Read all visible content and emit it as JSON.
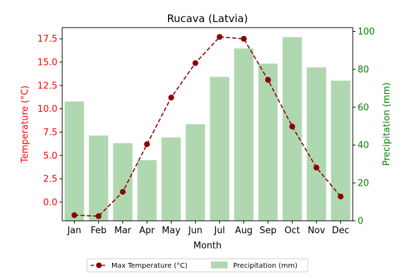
{
  "chart_data": {
    "type": "bar+line",
    "title": "Rucava (Latvia)",
    "xlabel": "Month",
    "categories": [
      "Jan",
      "Feb",
      "Mar",
      "Apr",
      "May",
      "Jun",
      "Jul",
      "Aug",
      "Sep",
      "Oct",
      "Nov",
      "Dec"
    ],
    "left_axis": {
      "label": "Temperature (°C)",
      "range": [
        -2.0,
        18.7
      ],
      "ticks": [
        "0.0",
        "2.5",
        "5.0",
        "7.5",
        "10.0",
        "12.5",
        "15.0",
        "17.5"
      ],
      "tick_values": [
        0,
        2.5,
        5,
        7.5,
        10,
        12.5,
        15,
        17.5
      ],
      "color": "#ff0000"
    },
    "right_axis": {
      "label": "Precipitation (mm)",
      "range": [
        0,
        102
      ],
      "ticks": [
        "0",
        "20",
        "40",
        "60",
        "80",
        "100"
      ],
      "tick_values": [
        0,
        20,
        40,
        60,
        80,
        100
      ],
      "color": "#008000"
    },
    "series": [
      {
        "name": "Max Temperature (°C)",
        "kind": "line",
        "axis": "left",
        "color": "#8b0000",
        "values": [
          -1.4,
          -1.5,
          1.1,
          6.2,
          11.2,
          14.9,
          17.7,
          17.5,
          13.1,
          8.1,
          3.7,
          0.6
        ]
      },
      {
        "name": "Precipitation (mm)",
        "kind": "bar",
        "axis": "right",
        "color": "#b0d8b0",
        "values": [
          63,
          45,
          41,
          32,
          44,
          51,
          76,
          91,
          83,
          97,
          81,
          74
        ]
      }
    ],
    "legend_position": "bottom-center",
    "grid": false
  }
}
